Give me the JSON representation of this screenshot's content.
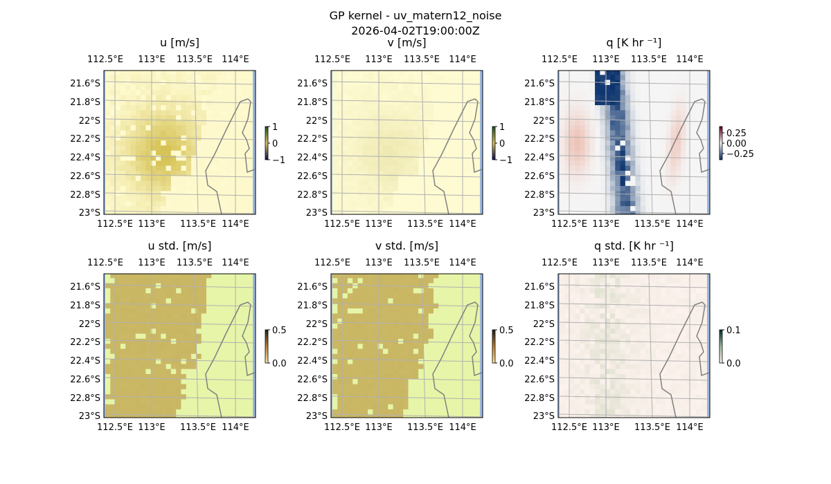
{
  "chart_data": {
    "type": "heatmap",
    "title": "GP kernel - uv_matern12_noise",
    "subtitle": "2026-04-02T19:00:00Z",
    "lon_ticks": [
      "112.5°E",
      "113°E",
      "113.5°E",
      "114°E"
    ],
    "lat_ticks": [
      "21.6°S",
      "21.8°S",
      "22°S",
      "22.2°S",
      "22.4°S",
      "22.6°S",
      "22.8°S",
      "23°S"
    ],
    "xlim": [
      112.4,
      114.2
    ],
    "ylim": [
      -23.0,
      -21.5
    ],
    "grid": true,
    "panels": [
      {
        "title": "u [m/s]",
        "cmap": "gist_earth-like",
        "colors": [
          "#fffbd0",
          "#d4c050"
        ],
        "cbar_ticks": [
          "1",
          "0",
          "−1"
        ],
        "vrange": [
          -1,
          1
        ],
        "cbar_colors": [
          "#0a1050",
          "#d8c060",
          "#1a5020"
        ]
      },
      {
        "title": "v [m/s]",
        "cmap": "gist_earth-like",
        "colors": [
          "#fffcd4",
          "#e4dc9c"
        ],
        "cbar_ticks": [
          "1",
          "0",
          "−1"
        ],
        "vrange": [
          -1,
          1
        ],
        "cbar_colors": [
          "#0a1050",
          "#d8c060",
          "#1a5020"
        ]
      },
      {
        "title": "q [K hr ⁻¹]",
        "cmap": "RdBu_r",
        "colors": [
          "#f5f5f5",
          "#08306b"
        ],
        "cbar_ticks": [
          "0.25",
          "0.00",
          "−0.25"
        ],
        "vrange": [
          -0.35,
          0.35
        ],
        "cbar_colors": [
          "#08306b",
          "#f7f7f7",
          "#67001f"
        ]
      },
      {
        "title": "u std. [m/s]",
        "cmap": "gist_earth-like",
        "colors": [
          "#e6f5a8",
          "#cbb866"
        ],
        "cbar_ticks": [
          "0.5",
          "0.0"
        ],
        "vrange": [
          0,
          0.5
        ],
        "cbar_colors": [
          "#ffe8a0",
          "#c08030",
          "#202020"
        ]
      },
      {
        "title": "v std. [m/s]",
        "cmap": "gist_earth-like",
        "colors": [
          "#e6f5a8",
          "#cbb866"
        ],
        "cbar_ticks": [
          "0.5",
          "0.0"
        ],
        "vrange": [
          0,
          0.5
        ],
        "cbar_colors": [
          "#ffe8a0",
          "#c08030",
          "#202020"
        ]
      },
      {
        "title": "q std. [K hr ⁻¹]",
        "cmap": "pink-green",
        "colors": [
          "#fdf2ee",
          "#c8d4b8"
        ],
        "cbar_ticks": [
          "0.1",
          "0.0"
        ],
        "vrange": [
          0,
          0.1
        ],
        "cbar_colors": [
          "#fff5f0",
          "#a0c0a0",
          "#003030"
        ]
      }
    ]
  }
}
